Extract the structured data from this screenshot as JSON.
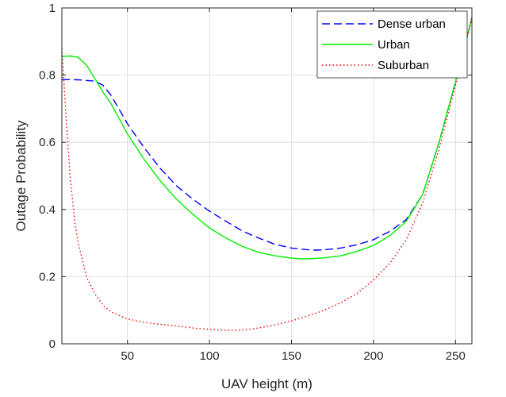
{
  "chart_data": {
    "type": "line",
    "title": "",
    "xlabel": "UAV height (m)",
    "ylabel": "Outage Probability",
    "xlim": [
      10,
      260
    ],
    "ylim": [
      0,
      1
    ],
    "xticks": [
      50,
      100,
      150,
      200,
      250
    ],
    "yticks": [
      0,
      0.2,
      0.4,
      0.6,
      0.8,
      1
    ],
    "ytick_labels": [
      "0",
      "0.2",
      "0.4",
      "0.6",
      "0.8",
      "1"
    ],
    "grid": true,
    "legend": "top-right",
    "series": [
      {
        "name": "Dense urban",
        "color": "#0000ff",
        "style": "dashed",
        "x": [
          10,
          20,
          30,
          35,
          40,
          50,
          60,
          70,
          80,
          90,
          100,
          110,
          120,
          130,
          140,
          150,
          160,
          165,
          170,
          180,
          190,
          200,
          210,
          220,
          230,
          240,
          250,
          260
        ],
        "y": [
          0.787,
          0.786,
          0.782,
          0.77,
          0.74,
          0.655,
          0.585,
          0.522,
          0.47,
          0.43,
          0.395,
          0.365,
          0.336,
          0.315,
          0.296,
          0.285,
          0.28,
          0.279,
          0.28,
          0.285,
          0.295,
          0.31,
          0.335,
          0.37,
          0.445,
          0.6,
          0.78,
          0.97
        ]
      },
      {
        "name": "Urban",
        "color": "#00ee00",
        "style": "solid",
        "x": [
          10,
          15,
          20,
          25,
          30,
          35,
          40,
          50,
          60,
          70,
          80,
          90,
          100,
          110,
          120,
          130,
          140,
          150,
          155,
          160,
          170,
          180,
          190,
          200,
          210,
          220,
          230,
          240,
          250,
          260
        ],
        "y": [
          0.855,
          0.857,
          0.853,
          0.83,
          0.79,
          0.75,
          0.715,
          0.625,
          0.55,
          0.485,
          0.43,
          0.385,
          0.345,
          0.315,
          0.29,
          0.272,
          0.262,
          0.255,
          0.253,
          0.253,
          0.256,
          0.262,
          0.275,
          0.293,
          0.322,
          0.365,
          0.445,
          0.6,
          0.78,
          0.97
        ]
      },
      {
        "name": "Suburban",
        "color": "#ee0000",
        "style": "dotted",
        "x": [
          10,
          12,
          15,
          18,
          20,
          25,
          30,
          35,
          40,
          50,
          60,
          70,
          80,
          90,
          100,
          110,
          120,
          130,
          140,
          150,
          160,
          170,
          180,
          190,
          200,
          210,
          220,
          230,
          240,
          250,
          260
        ],
        "y": [
          0.88,
          0.72,
          0.5,
          0.36,
          0.3,
          0.2,
          0.15,
          0.115,
          0.095,
          0.074,
          0.064,
          0.058,
          0.053,
          0.047,
          0.043,
          0.04,
          0.041,
          0.047,
          0.056,
          0.068,
          0.083,
          0.1,
          0.122,
          0.15,
          0.19,
          0.24,
          0.31,
          0.42,
          0.58,
          0.77,
          0.97
        ]
      }
    ]
  }
}
